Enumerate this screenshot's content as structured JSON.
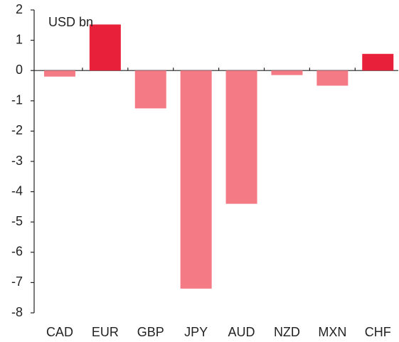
{
  "chart_data": {
    "type": "bar",
    "annotation": "USD bn",
    "categories": [
      "CAD",
      "EUR",
      "GBP",
      "JPY",
      "AUD",
      "NZD",
      "MXN",
      "CHF"
    ],
    "values": [
      -0.2,
      1.52,
      -1.25,
      -7.2,
      -4.4,
      -0.15,
      -0.5,
      0.55
    ],
    "colors": [
      "#f47a86",
      "#e8203a",
      "#f47a86",
      "#f47a86",
      "#f47a86",
      "#f47a86",
      "#f47a86",
      "#e8203a"
    ],
    "ylim": [
      -8,
      2
    ],
    "yticks": [
      -8,
      -7,
      -6,
      -5,
      -4,
      -3,
      -2,
      -1,
      0,
      1,
      2
    ],
    "grid": false
  }
}
